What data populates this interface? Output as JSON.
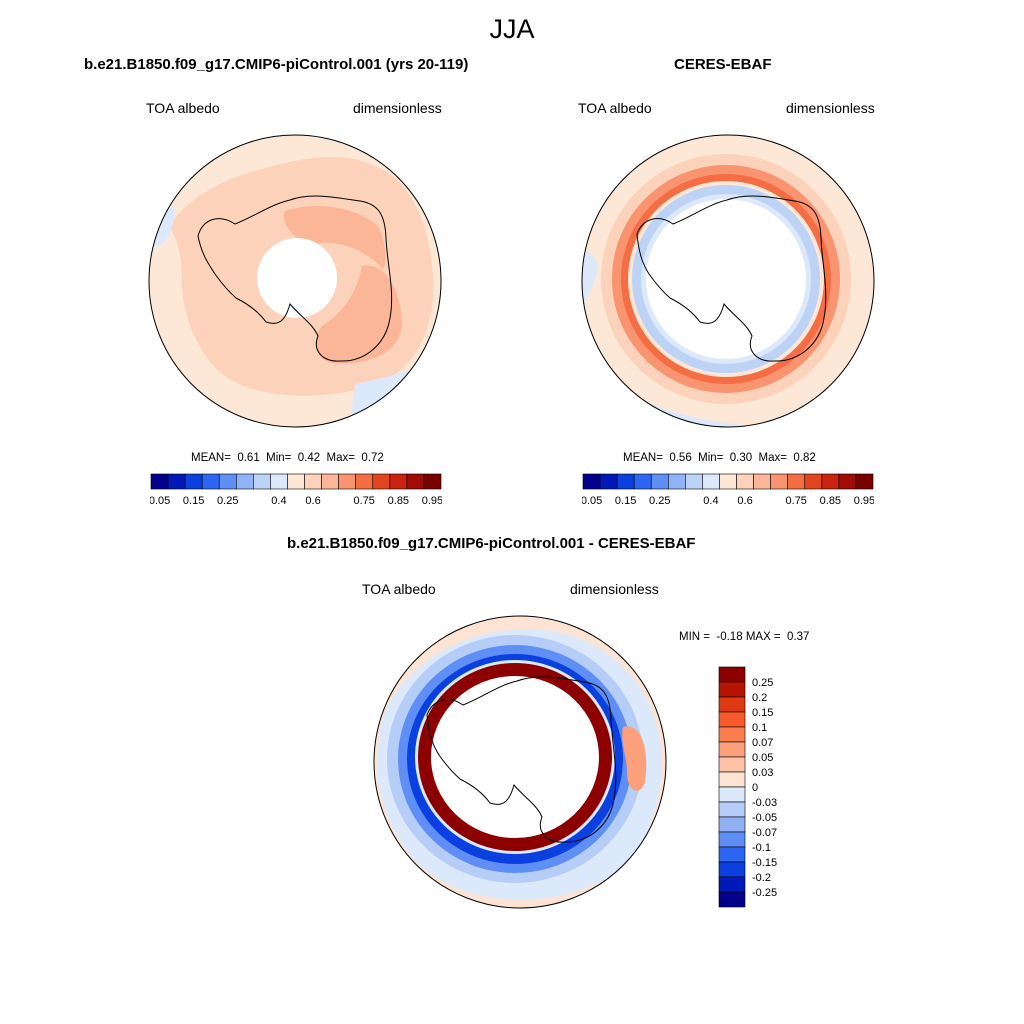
{
  "figure": {
    "title": "JJA"
  },
  "panels": [
    {
      "title": "b.e21.B1850.f09_g17.CMIP6-piControl.001 (yrs 20-119)",
      "var_label": "TOA albedo",
      "units": "dimensionless",
      "stats": {
        "mean_label": "MEAN=",
        "mean": "0.61",
        "min_label": "Min=",
        "min": "0.42",
        "max_label": "Max=",
        "max": "0.72"
      }
    },
    {
      "title": "CERES-EBAF",
      "var_label": "TOA albedo",
      "units": "dimensionless",
      "stats": {
        "mean_label": "MEAN=",
        "mean": "0.56",
        "min_label": "Min=",
        "min": "0.30",
        "max_label": "Max=",
        "max": "0.82"
      }
    },
    {
      "title": "b.e21.B1850.f09_g17.CMIP6-piControl.001 - CERES-EBAF",
      "var_label": "TOA albedo",
      "units": "dimensionless",
      "stats": {
        "min_label": "MIN =",
        "min": "-0.18",
        "max_label": "MAX =",
        "max": "0.37"
      }
    }
  ],
  "chart_data": [
    {
      "type": "heatmap",
      "map": "south-polar-stereographic",
      "title": "b.e21.B1850.f09_g17.CMIP6-piControl.001 (yrs 20-119)",
      "variable": "TOA albedo",
      "units": "dimensionless",
      "mean": 0.61,
      "min": 0.42,
      "max": 0.72,
      "colorbar": {
        "orientation": "horizontal",
        "levels": [
          0.05,
          0.1,
          0.15,
          0.2,
          0.25,
          0.3,
          0.35,
          0.4,
          0.5,
          0.6,
          0.65,
          0.7,
          0.75,
          0.8,
          0.85,
          0.9,
          0.95
        ],
        "tick_labels": [
          "0.05",
          "0.15",
          "0.25",
          "0.4",
          "0.6",
          "0.75",
          "0.85",
          "0.95"
        ],
        "colors": [
          "#00008c",
          "#0019b8",
          "#0a3fe0",
          "#2d66f2",
          "#5f8ff5",
          "#90b3f7",
          "#bdd3f5",
          "#dce9fa",
          "#fde7d6",
          "#fcd2ba",
          "#fbb697",
          "#f99470",
          "#f46d43",
          "#e34420",
          "#c9230f",
          "#a10c04",
          "#7a0000"
        ]
      },
      "contours": [
        {
          "range": "0.5-0.6",
          "color": "#fde7d6",
          "region": "outer ocean margin"
        },
        {
          "range": "0.6-0.65",
          "color": "#fcd2ba",
          "region": "Southern Ocean and Antarctic interior"
        },
        {
          "range": "0.65-0.7",
          "color": "#fbb697",
          "region": "East Antarctic plateau and West Antarctic interior"
        },
        {
          "range": "0.4-0.5",
          "color": "#dce9fa",
          "region": "scattered outer edges"
        },
        {
          "range": "missing",
          "color": "#ffffff",
          "region": "polar night hole"
        }
      ]
    },
    {
      "type": "heatmap",
      "map": "south-polar-stereographic",
      "title": "CERES-EBAF",
      "variable": "TOA albedo",
      "units": "dimensionless",
      "mean": 0.56,
      "min": 0.3,
      "max": 0.82,
      "colorbar": {
        "orientation": "horizontal",
        "levels": [
          0.05,
          0.1,
          0.15,
          0.2,
          0.25,
          0.3,
          0.35,
          0.4,
          0.5,
          0.6,
          0.65,
          0.7,
          0.75,
          0.8,
          0.85,
          0.9,
          0.95
        ],
        "tick_labels": [
          "0.05",
          "0.15",
          "0.25",
          "0.4",
          "0.6",
          "0.75",
          "0.85",
          "0.95"
        ],
        "colors": [
          "#00008c",
          "#0019b8",
          "#0a3fe0",
          "#2d66f2",
          "#5f8ff5",
          "#90b3f7",
          "#bdd3f5",
          "#dce9fa",
          "#fde7d6",
          "#fcd2ba",
          "#fbb697",
          "#f99470",
          "#f46d43",
          "#e34420",
          "#c9230f",
          "#a10c04",
          "#7a0000"
        ]
      },
      "contours": [
        {
          "range": "0.5-0.6",
          "color": "#fde7d6",
          "region": "outer ocean"
        },
        {
          "range": "0.6-0.65",
          "color": "#fcd2ba",
          "region": "ring around sea ice edge"
        },
        {
          "range": "0.65-0.75",
          "color": "#f99470",
          "region": "ring near sea ice edge"
        },
        {
          "range": "0.75-0.8",
          "color": "#f46d43",
          "region": "narrow ring near sea ice edge"
        },
        {
          "range": "0.35-0.5",
          "color": "#bdd3f5",
          "region": "inner ring"
        },
        {
          "range": "missing",
          "color": "#ffffff",
          "region": "polar night interior"
        }
      ]
    },
    {
      "type": "heatmap",
      "map": "south-polar-stereographic",
      "title": "b.e21.B1850.f09_g17.CMIP6-piControl.001 - CERES-EBAF",
      "variable": "TOA albedo",
      "units": "dimensionless",
      "min": -0.18,
      "max": 0.37,
      "colorbar": {
        "orientation": "vertical",
        "levels": [
          0.25,
          0.2,
          0.15,
          0.1,
          0.07,
          0.05,
          0.03,
          0,
          -0.03,
          -0.05,
          -0.07,
          -0.1,
          -0.15,
          -0.2,
          -0.25
        ],
        "tick_labels": [
          "0.25",
          "0.2",
          "0.15",
          "0.1",
          "0.07",
          "0.05",
          "0.03",
          "0",
          "-0.03",
          "-0.05",
          "-0.07",
          "-0.1",
          "-0.15",
          "-0.2",
          "-0.25"
        ],
        "colors": [
          "#8c0000",
          "#b81402",
          "#e03a12",
          "#fa5a2a",
          "#fb7e4f",
          "#fba07a",
          "#fcc3a6",
          "#fde3d3",
          "#dce9fa",
          "#b6cdf7",
          "#8fb1f4",
          "#5f8ff5",
          "#2d66f2",
          "#0a3fe0",
          "#0019b8",
          "#00008c"
        ]
      },
      "contours": [
        {
          "range": ">0.25",
          "color": "#8c0000",
          "region": "thick ring at the sea ice edge"
        },
        {
          "range": "<-0.25 to -0.1",
          "color": "#2d66f2",
          "region": "ring outside the sea ice edge"
        },
        {
          "range": "-0.1 to -0.03",
          "color": "#90b3f7",
          "region": "broader Southern Ocean band"
        },
        {
          "range": "0 to 0.03",
          "color": "#fde3d3",
          "region": "outer edges"
        },
        {
          "range": "missing",
          "color": "#ffffff",
          "region": "polar interior"
        }
      ]
    }
  ]
}
